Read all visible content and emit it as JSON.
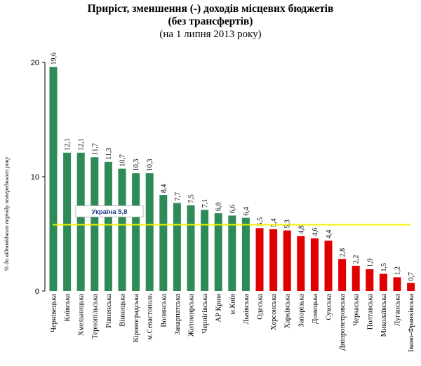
{
  "chart_data": {
    "type": "bar",
    "title": "Приріст, зменшення (-) доходів місцевих  бюджетів",
    "subtitle": "(без трансфертів)",
    "subtitle2": "(на 1 липня 2013 року)",
    "ylabel": "% до відповідного періоду попереднього року",
    "ylim": [
      0,
      20
    ],
    "yticks": [
      0,
      10,
      20
    ],
    "reference_line": {
      "label": "Україна 5,8",
      "value": 5.8,
      "color": "#f2f200"
    },
    "colors": {
      "above": "#2e8b57",
      "below": "#e00000"
    },
    "categories": [
      "Чернівецька",
      "Київська",
      "Хмельницька",
      "Тернопільська",
      "Рівненська",
      "Вінницька",
      "Кіровоградська",
      "м.Севастополь",
      "Волинська",
      "Закарпатська",
      "Житомирська",
      "Чернігівська",
      "АР Крим",
      "м.Київ",
      "Львівська",
      "Одеська",
      "Херсонська",
      "Харківська",
      "Запорізька",
      "Донецька",
      "Сумська",
      "Дніпропетровська",
      "Черкаська",
      "Полтавська",
      "Миколаївська",
      "Луганська",
      "Івано-Франківська"
    ],
    "values": [
      19.6,
      12.1,
      12.1,
      11.7,
      11.3,
      10.7,
      10.3,
      10.3,
      8.4,
      7.7,
      7.5,
      7.1,
      6.8,
      6.6,
      6.4,
      5.5,
      5.4,
      5.3,
      4.8,
      4.6,
      4.4,
      2.8,
      2.2,
      1.9,
      1.5,
      1.2,
      0.7
    ],
    "value_labels": [
      "19,6",
      "12,1",
      "12,1",
      "11,7",
      "11,3",
      "10,7",
      "10,3",
      "10,3",
      "8,4",
      "7,7",
      "7,5",
      "7,1",
      "6,8",
      "6,6",
      "6,4",
      "5,5",
      "5,4",
      "5,3",
      "4,8",
      "4,6",
      "4,4",
      "2,8",
      "2,2",
      "1,9",
      "1,5",
      "1,2",
      "0,7"
    ]
  }
}
